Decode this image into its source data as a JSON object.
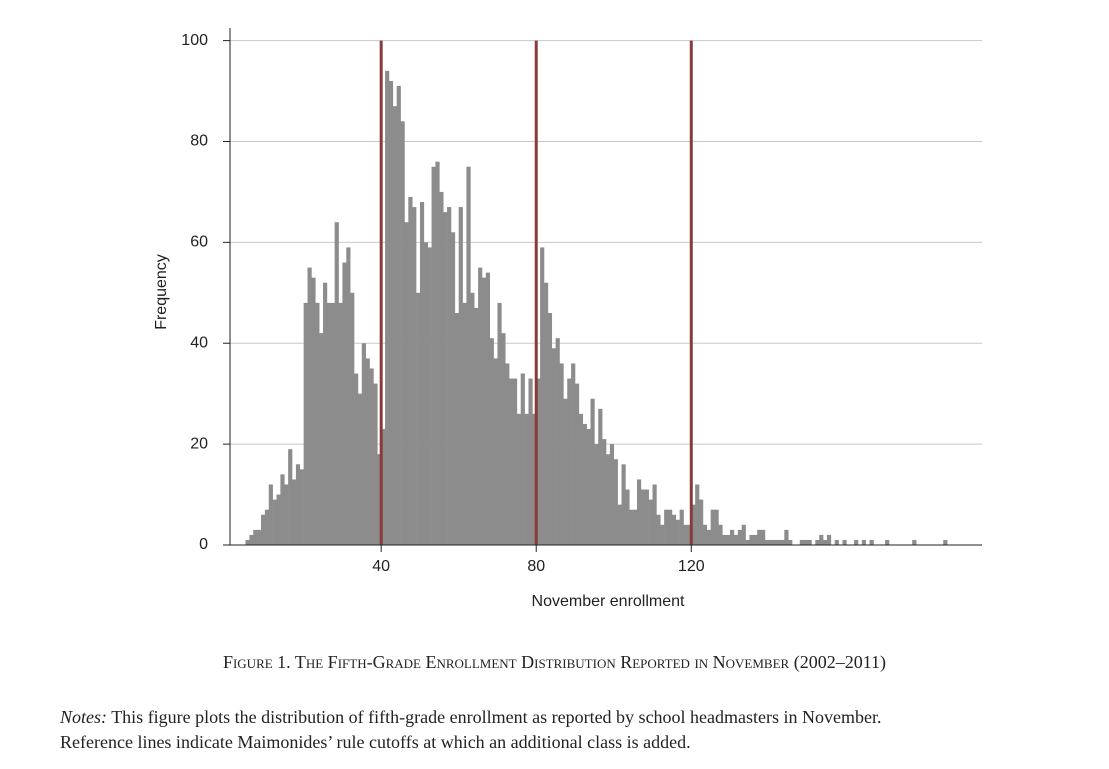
{
  "chart_data": {
    "type": "histogram",
    "xlabel": "November enrollment",
    "ylabel": "Frequency",
    "bins": [
      5,
      6,
      7,
      8,
      9,
      10,
      11,
      12,
      13,
      14,
      15,
      16,
      17,
      18,
      19,
      20,
      21,
      22,
      23,
      24,
      25,
      26,
      27,
      28,
      29,
      30,
      31,
      32,
      33,
      34,
      35,
      36,
      37,
      38,
      39,
      40,
      41,
      42,
      43,
      44,
      45,
      46,
      47,
      48,
      49,
      50,
      51,
      52,
      53,
      54,
      55,
      56,
      57,
      58,
      59,
      60,
      61,
      62,
      63,
      64,
      65,
      66,
      67,
      68,
      69,
      70,
      71,
      72,
      73,
      74,
      75,
      76,
      77,
      78,
      79,
      80,
      81,
      82,
      83,
      84,
      85,
      86,
      87,
      88,
      89,
      90,
      91,
      92,
      93,
      94,
      95,
      96,
      97,
      98,
      99,
      100,
      101,
      102,
      103,
      104,
      105,
      106,
      107,
      108,
      109,
      110,
      111,
      112,
      113,
      114,
      115,
      116,
      117,
      118,
      119,
      120,
      121,
      122,
      123,
      124,
      125,
      126,
      127,
      128,
      129,
      130,
      131,
      132,
      133,
      134,
      135,
      136,
      137,
      138,
      139,
      140,
      141,
      142,
      143,
      144,
      145,
      146,
      147,
      148,
      149,
      150,
      151,
      152,
      153,
      154,
      155,
      156,
      157,
      158,
      159,
      160,
      161,
      162,
      163,
      164,
      165,
      166,
      167,
      168,
      169,
      170,
      171,
      172,
      173,
      174,
      175,
      176,
      177,
      178,
      179,
      180,
      181,
      182,
      183,
      184,
      185,
      186
    ],
    "counts": [
      1,
      2,
      3,
      3,
      6,
      7,
      12,
      9,
      10,
      14,
      12,
      19,
      13,
      16,
      15,
      48,
      55,
      53,
      48,
      42,
      52,
      48,
      48,
      64,
      48,
      56,
      59,
      50,
      34,
      30,
      40,
      37,
      35,
      32,
      18,
      23,
      94,
      92,
      87,
      91,
      84,
      64,
      69,
      67,
      50,
      68,
      60,
      59,
      75,
      76,
      70,
      66,
      67,
      62,
      46,
      67,
      48,
      75,
      50,
      47,
      55,
      53,
      54,
      41,
      37,
      48,
      42,
      36,
      33,
      33,
      26,
      34,
      26,
      33,
      26,
      33,
      59,
      52,
      46,
      39,
      41,
      36,
      29,
      33,
      36,
      32,
      26,
      24,
      23,
      29,
      20,
      27,
      21,
      18,
      20,
      17,
      8,
      16,
      11,
      7,
      7,
      13,
      11,
      11,
      9,
      12,
      6,
      4,
      7,
      7,
      6,
      5,
      7,
      4,
      4,
      8,
      12,
      9,
      4,
      3,
      7,
      7,
      4,
      2,
      2,
      3,
      2,
      3,
      4,
      1,
      2,
      2,
      3,
      3,
      1,
      1,
      1,
      1,
      1,
      3,
      1,
      0,
      0,
      1,
      1,
      1,
      0,
      1,
      2,
      1,
      2,
      0,
      1,
      0,
      1,
      0,
      0,
      1,
      0,
      1,
      0,
      1,
      0,
      0,
      0,
      1,
      0,
      0,
      0,
      0,
      0,
      0,
      1,
      0,
      0,
      0,
      0,
      0,
      0,
      0,
      1
    ],
    "color": "#8c8c8c",
    "reference_lines": [
      40,
      80,
      120
    ],
    "reference_color": "#8b3a3a",
    "xlim": [
      1,
      195
    ],
    "xticks": [
      40,
      80,
      120
    ],
    "ylim": [
      0,
      102.5
    ],
    "yticks": [
      0,
      20,
      40,
      60,
      80,
      100
    ],
    "grid": true
  },
  "figure": {
    "caption": "Figure 1. The Fifth-Grade Enrollment Distribution Reported in November (2002–2011)",
    "notes_label": "Notes:",
    "notes": [
      "This figure plots the distribution of fifth-grade enrollment as reported by school headmasters in November.",
      "Reference lines indicate Maimonides’ rule cutoffs at which an additional class is added."
    ]
  }
}
